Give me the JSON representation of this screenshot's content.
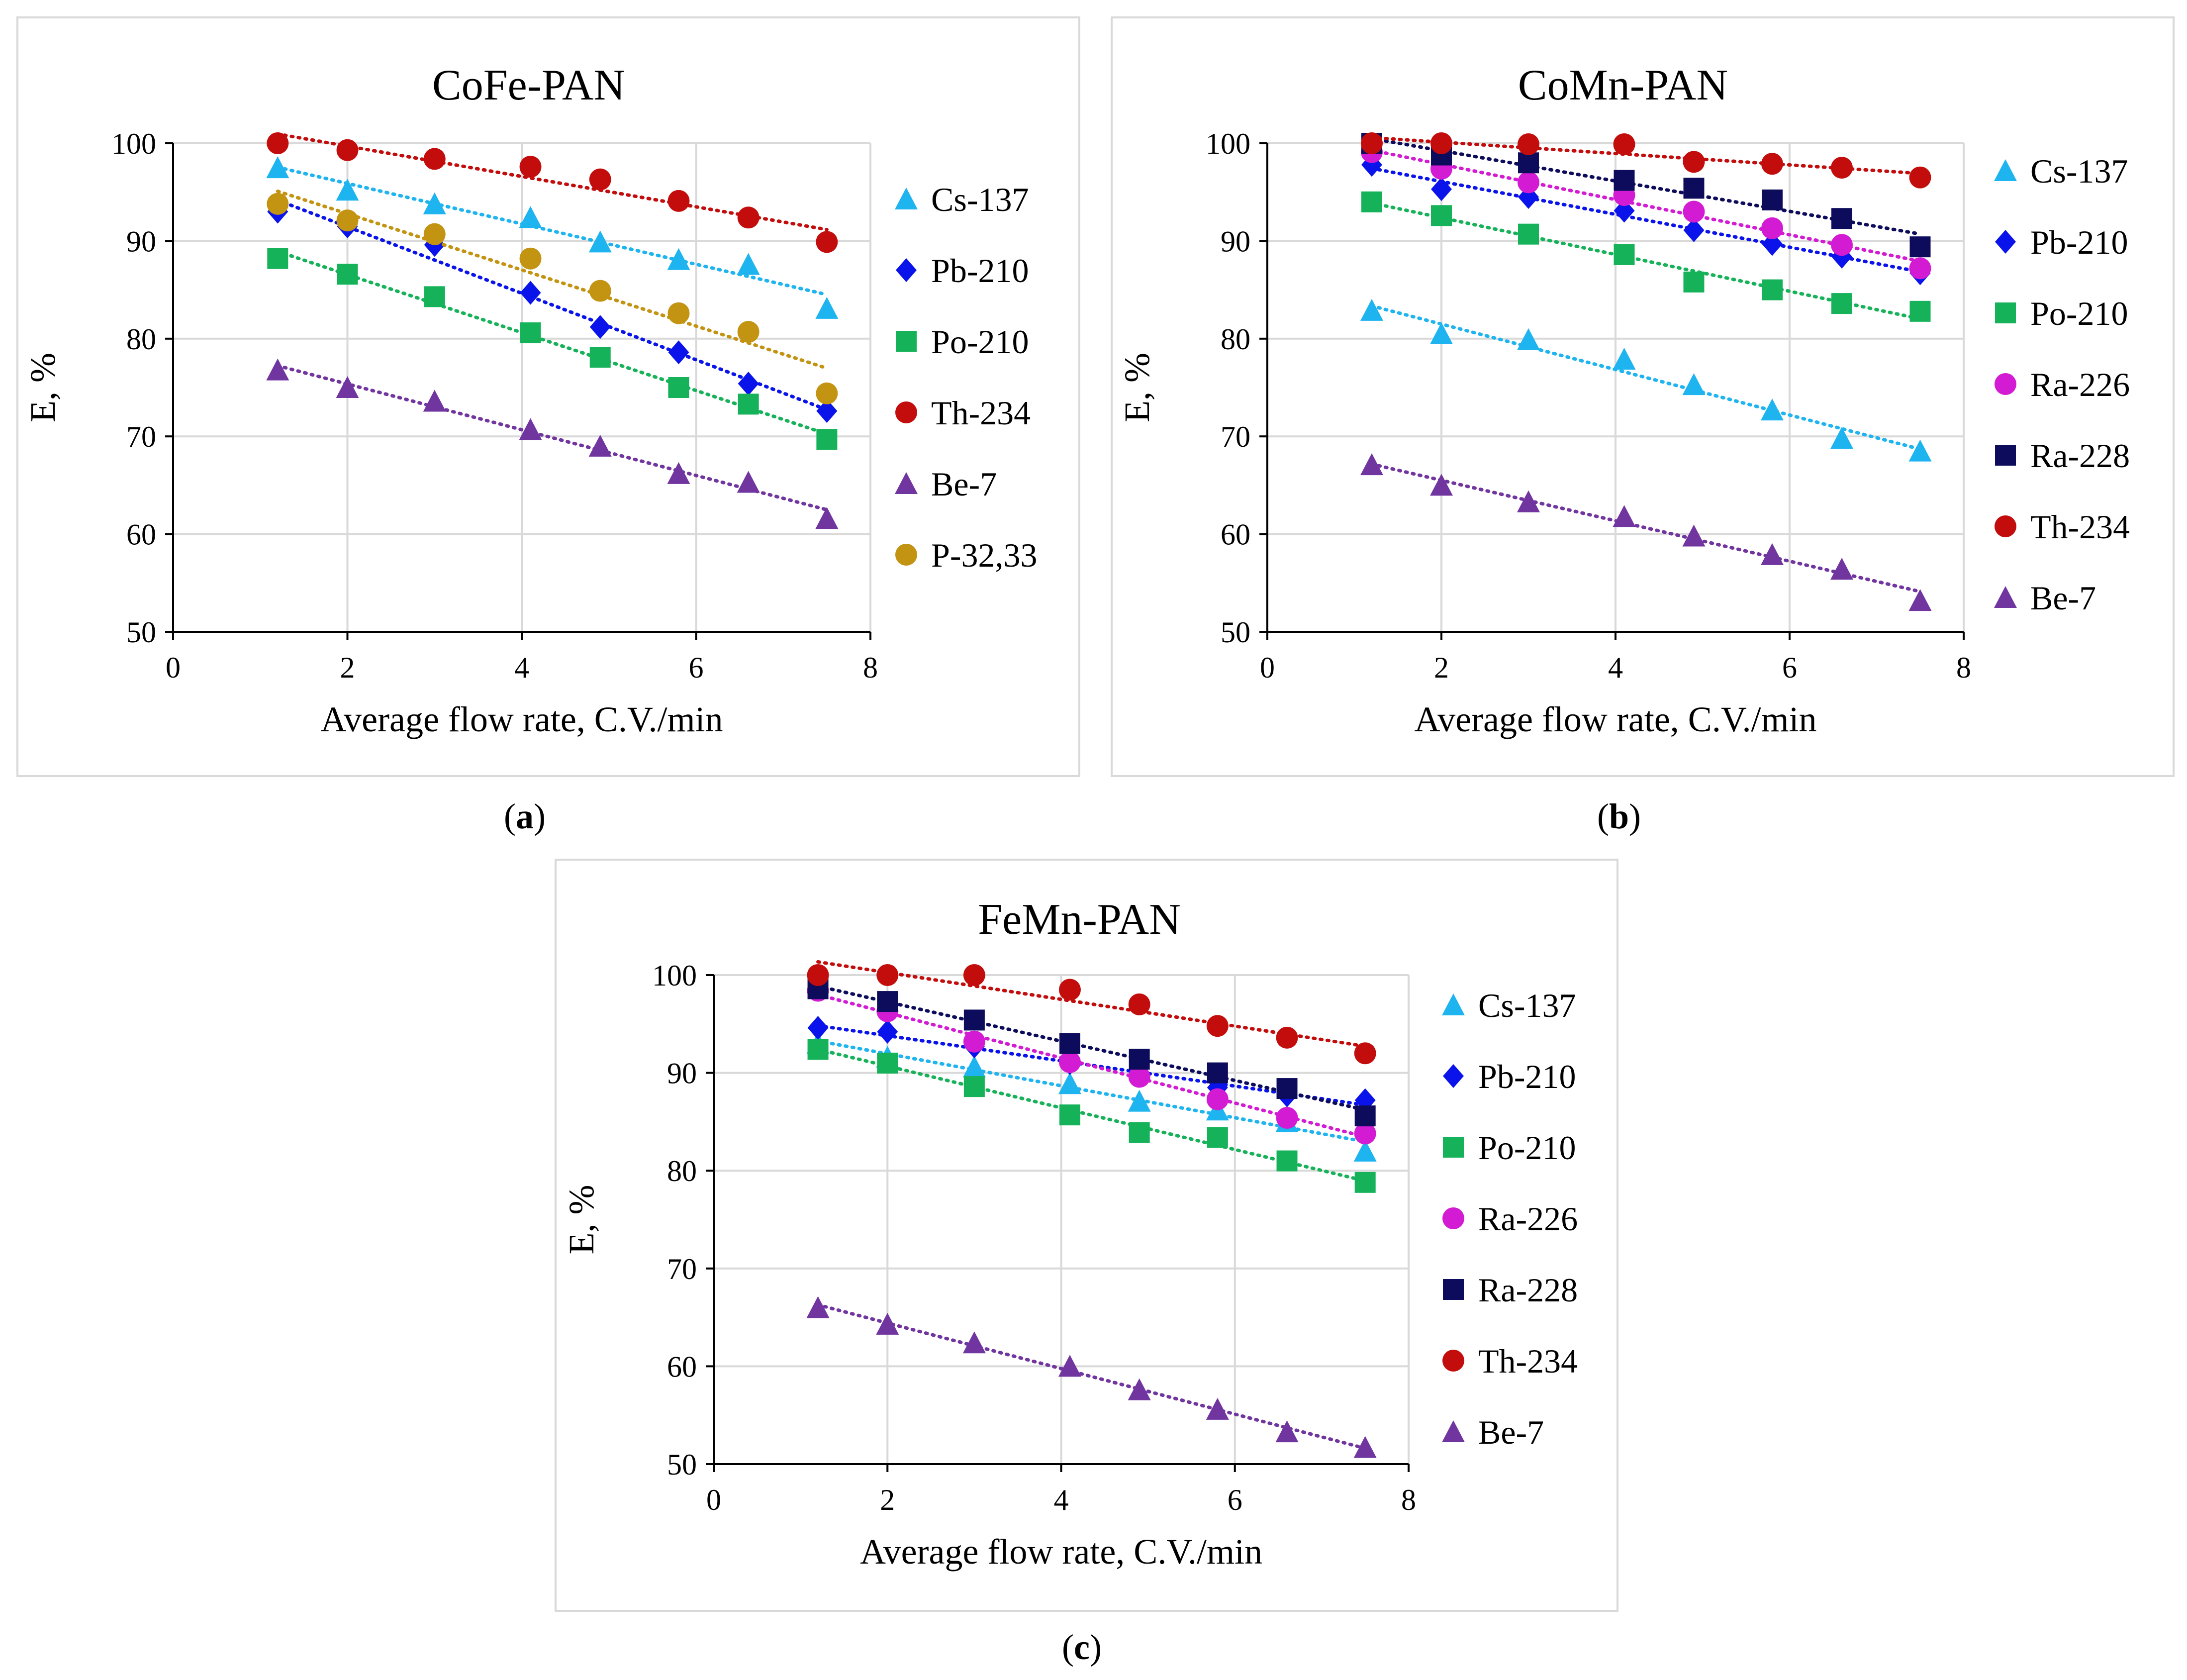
{
  "figure": {
    "captions": [
      {
        "open": "(",
        "letter": "a",
        "close": ")"
      },
      {
        "open": "(",
        "letter": "b",
        "close": ")"
      },
      {
        "open": "(",
        "letter": "c",
        "close": ")"
      }
    ]
  },
  "colors": {
    "Cs-137": "#1eb4ef",
    "Pb-210": "#0a14ea",
    "Po-210": "#16b259",
    "Ra-226": "#d21bd2",
    "Ra-228": "#0d0c5c",
    "Th-234": "#c30d0d",
    "Be-7": "#7135a0",
    "P-32,33": "#c39312"
  },
  "chart_data": [
    {
      "type": "scatter",
      "title": "CoFe-PAN",
      "xlabel": "Average flow rate, C.V./min",
      "ylabel": "E, %",
      "xlim": [
        0,
        8
      ],
      "ylim": [
        50,
        100
      ],
      "xticks": [
        "0",
        "2",
        "4",
        "6",
        "8"
      ],
      "yticks": [
        "50",
        "60",
        "70",
        "80",
        "90",
        "100"
      ],
      "x": [
        1.2,
        2.0,
        3.0,
        4.1,
        4.9,
        5.8,
        6.6,
        7.5
      ],
      "trendline": "linear, dotted",
      "legend_position": "right",
      "series": [
        {
          "name": "Cs-137",
          "marker": "triangle",
          "values": [
            97.5,
            95.2,
            93.8,
            92.4,
            89.9,
            88.1,
            87.6,
            83.1
          ]
        },
        {
          "name": "Pb-210",
          "marker": "diamond",
          "values": [
            93.0,
            91.5,
            89.6,
            84.7,
            81.2,
            78.6,
            75.4,
            72.6
          ]
        },
        {
          "name": "Po-210",
          "marker": "square",
          "values": [
            88.2,
            86.6,
            84.3,
            80.6,
            78.1,
            75.0,
            73.3,
            69.7
          ]
        },
        {
          "name": "Th-234",
          "marker": "circle",
          "values": [
            100.0,
            99.3,
            98.4,
            97.6,
            96.3,
            94.1,
            92.4,
            89.9
          ]
        },
        {
          "name": "Be-7",
          "marker": "triangle",
          "values": [
            76.8,
            75.0,
            73.6,
            70.7,
            69.0,
            66.2,
            65.3,
            61.6
          ]
        },
        {
          "name": "P-32,33",
          "marker": "circle",
          "values": [
            93.8,
            92.1,
            90.7,
            88.2,
            84.9,
            82.6,
            80.7,
            74.4
          ]
        }
      ]
    },
    {
      "type": "scatter",
      "title": "CoMn-PAN",
      "xlabel": "Average flow rate, C.V./min",
      "ylabel": "E, %",
      "xlim": [
        0,
        8
      ],
      "ylim": [
        50,
        100
      ],
      "xticks": [
        "0",
        "2",
        "4",
        "6",
        "8"
      ],
      "yticks": [
        "50",
        "60",
        "70",
        "80",
        "90",
        "100"
      ],
      "x": [
        1.2,
        2.0,
        3.0,
        4.1,
        4.9,
        5.8,
        6.6,
        7.5
      ],
      "trendline": "linear, dotted",
      "legend_position": "right",
      "series": [
        {
          "name": "Cs-137",
          "marker": "triangle",
          "values": [
            82.9,
            80.5,
            79.9,
            77.9,
            75.3,
            72.7,
            69.8,
            68.5
          ]
        },
        {
          "name": "Pb-210",
          "marker": "diamond",
          "values": [
            97.8,
            95.3,
            94.5,
            93.1,
            91.1,
            89.7,
            88.4,
            86.7
          ]
        },
        {
          "name": "Po-210",
          "marker": "square",
          "values": [
            94.0,
            92.6,
            90.7,
            88.6,
            85.8,
            85.0,
            83.6,
            82.8
          ]
        },
        {
          "name": "Ra-226",
          "marker": "circle",
          "values": [
            99.1,
            97.4,
            96.0,
            94.7,
            93.0,
            91.3,
            89.6,
            87.2
          ]
        },
        {
          "name": "Ra-228",
          "marker": "square",
          "values": [
            100.0,
            98.8,
            98.0,
            96.2,
            95.4,
            94.2,
            92.3,
            89.4
          ]
        },
        {
          "name": "Th-234",
          "marker": "circle",
          "values": [
            100.0,
            100.0,
            99.9,
            99.9,
            98.1,
            97.9,
            97.5,
            96.5
          ]
        },
        {
          "name": "Be-7",
          "marker": "triangle",
          "values": [
            67.1,
            65.0,
            63.3,
            61.8,
            59.8,
            57.9,
            56.4,
            53.2
          ]
        }
      ]
    },
    {
      "type": "scatter",
      "title": "FeMn-PAN",
      "xlabel": "Average flow rate, C.V./min",
      "ylabel": "E, %",
      "xlim": [
        0,
        8
      ],
      "ylim": [
        50,
        100
      ],
      "xticks": [
        "0",
        "2",
        "4",
        "6",
        "8"
      ],
      "yticks": [
        "50",
        "60",
        "70",
        "80",
        "90",
        "100"
      ],
      "x": [
        1.2,
        2.0,
        3.0,
        4.1,
        4.9,
        5.8,
        6.6,
        7.5
      ],
      "trendline": "linear, dotted",
      "legend_position": "right",
      "series": [
        {
          "name": "Cs-137",
          "marker": "triangle",
          "values": [
            93.0,
            91.6,
            90.6,
            88.9,
            87.1,
            86.2,
            85.0,
            82.0
          ]
        },
        {
          "name": "Pb-210",
          "marker": "diamond",
          "values": [
            94.6,
            94.2,
            92.7,
            91.0,
            89.9,
            88.5,
            87.7,
            87.2
          ]
        },
        {
          "name": "Po-210",
          "marker": "square",
          "values": [
            92.4,
            91.0,
            88.6,
            85.7,
            83.9,
            83.4,
            81.0,
            78.8
          ]
        },
        {
          "name": "Ra-226",
          "marker": "circle",
          "values": [
            98.4,
            96.3,
            93.2,
            91.1,
            89.6,
            87.3,
            85.4,
            83.8
          ]
        },
        {
          "name": "Ra-228",
          "marker": "square",
          "values": [
            98.6,
            97.3,
            95.4,
            93.0,
            91.4,
            90.0,
            88.4,
            85.6
          ]
        },
        {
          "name": "Th-234",
          "marker": "circle",
          "values": [
            100.0,
            100.0,
            100.0,
            98.5,
            97.0,
            94.8,
            93.6,
            92.0
          ]
        },
        {
          "name": "Be-7",
          "marker": "triangle",
          "values": [
            66.0,
            64.3,
            62.4,
            60.0,
            57.6,
            55.6,
            53.3,
            51.7
          ]
        }
      ]
    }
  ]
}
